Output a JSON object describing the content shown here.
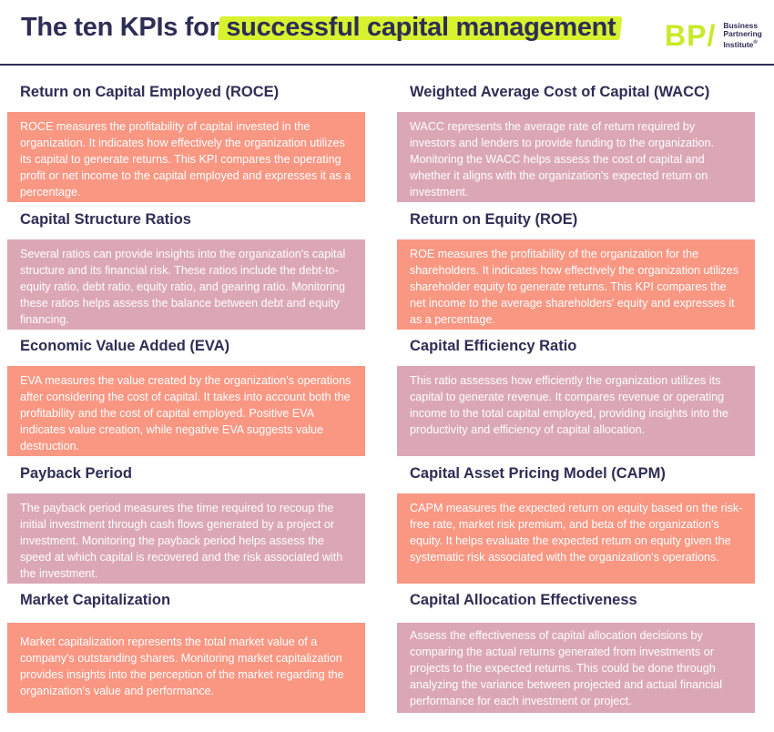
{
  "header": {
    "title_prefix": "The ten KPIs for ",
    "title_highlight": "successful capital management",
    "logo_mark": "BP/",
    "logo_lines": [
      "Business",
      "Partnering",
      "Institute"
    ],
    "logo_trademark": "®"
  },
  "colors": {
    "navy": "#2e2d55",
    "highlight": "#d8f22f",
    "salmon": "#f99783",
    "mauve": "#dba7b5"
  },
  "kpis": [
    {
      "title": "Return on Capital Employed (ROCE)",
      "description": "ROCE measures the profitability of capital invested in the organization. It indicates how effectively the organization utilizes its capital to generate returns. This KPI compares the operating profit or net income to the capital employed and expresses it as a percentage."
    },
    {
      "title": "Weighted Average Cost of Capital (WACC)",
      "description": "WACC represents the average rate of return required by investors and lenders to provide funding to the organization. Monitoring the WACC helps assess the cost of capital and whether it aligns with the organization's expected return on investment."
    },
    {
      "title": "Capital Structure Ratios",
      "description": "Several ratios can provide insights into the organization's capital structure and its financial risk. These ratios include the debt-to-equity ratio, debt ratio, equity ratio, and gearing ratio. Monitoring these ratios helps assess the balance between debt and equity financing."
    },
    {
      "title": "Return on Equity (ROE)",
      "description": "ROE measures the profitability of the organization for the shareholders. It indicates how effectively the organization utilizes shareholder equity to generate returns. This KPI compares the net income to the average shareholders' equity and expresses it as a percentage."
    },
    {
      "title": "Economic Value Added (EVA)",
      "description": "EVA measures the value created by the organization's operations after considering the cost of capital. It takes into account both the profitability and the cost of capital employed. Positive EVA indicates value creation, while negative EVA suggests value destruction."
    },
    {
      "title": "Capital Efficiency Ratio",
      "description": "This ratio assesses how efficiently the organization utilizes its capital to generate revenue. It compares revenue or operating income to the total capital employed, providing insights into the productivity and efficiency of capital allocation."
    },
    {
      "title": "Payback Period",
      "description": "The payback period measures the time required to recoup the initial investment through cash flows generated by a project or investment. Monitoring the payback period helps assess the speed at which capital is recovered and the risk associated with the investment."
    },
    {
      "title": "Capital Asset Pricing Model (CAPM)",
      "description": "CAPM measures the expected return on equity based on the risk-free rate, market risk premium, and beta of the organization's equity. It helps evaluate the expected return on equity given the systematic risk associated with the organization's operations."
    },
    {
      "title": "Market Capitalization",
      "description": "Market capitalization represents the total market value of a company's outstanding shares. Monitoring market capitalization provides insights into the perception of the market regarding the organization's value and performance."
    },
    {
      "title": "Capital Allocation Effectiveness",
      "description": "Assess the effectiveness of capital allocation decisions by comparing the actual returns generated from investments or projects to the expected returns. This could be done through analyzing the variance between projected and actual financial performance for each investment or project."
    }
  ]
}
